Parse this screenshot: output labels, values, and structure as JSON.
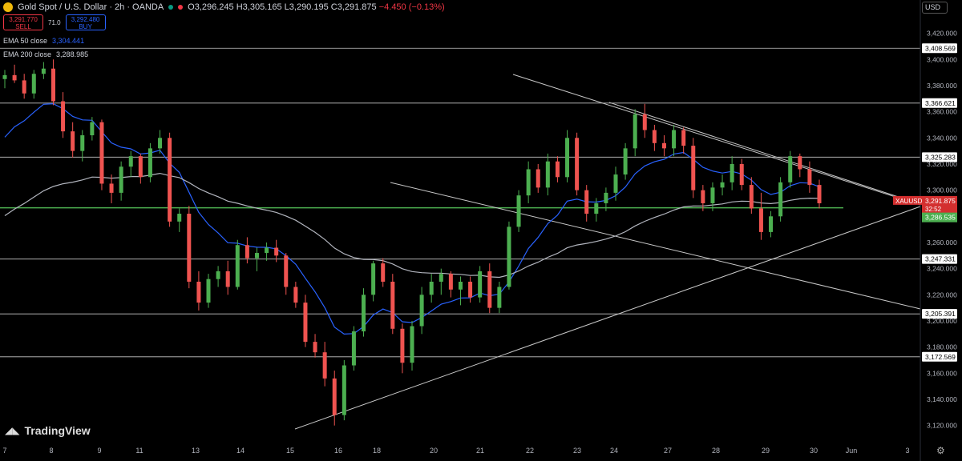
{
  "header": {
    "symbol": "Gold Spot / U.S. Dollar · 2h · OANDA",
    "ohlc": "O3,296.245 H3,305.165 L3,290.195 C3,291.875",
    "change": "−4.450 (−0.13%)",
    "status_colors": [
      "#089981",
      "#f23645"
    ]
  },
  "trade": {
    "sell_price": "3,291.770",
    "sell_label": "SELL",
    "spread": "71.0",
    "buy_price": "3,292.480",
    "buy_label": "BUY"
  },
  "indicators": {
    "ema50_label": "EMA 50 close",
    "ema50_value": "3,304.441",
    "ema50_color": "#2962ff",
    "ema200_label": "EMA 200 close",
    "ema200_value": "3,288.985",
    "ema200_color": "#b2b5be"
  },
  "currency": "USD",
  "branding": "TradingView",
  "chart_data": {
    "type": "candlestick",
    "symbol": "XAUUSD",
    "ylim": [
      3110,
      3432
    ],
    "y_ticks": [
      "3,420.000",
      "3,400.000",
      "3,380.000",
      "3,360.000",
      "3,340.000",
      "3,320.000",
      "3,300.000",
      "3,280.000",
      "3,260.000",
      "3,240.000",
      "3,220.000",
      "3,200.000",
      "3,180.000",
      "3,160.000",
      "3,140.000",
      "3,120.000"
    ],
    "x_ticks": [
      "7",
      "8",
      "9",
      "11",
      "13",
      "14",
      "15",
      "16",
      "18",
      "20",
      "21",
      "22",
      "23",
      "24",
      "27",
      "28",
      "29",
      "30",
      "Jun",
      "3"
    ],
    "horizontal_levels": [
      "3,408.569",
      "3,366.621",
      "3,325.283",
      "3,247.331",
      "3,205.391",
      "3,172.569"
    ],
    "support_level": "3,286.535",
    "last_price": "3,291.875",
    "countdown": "32:52",
    "candles": [
      [
        3385,
        3392,
        3378,
        3388
      ],
      [
        3388,
        3396,
        3382,
        3384
      ],
      [
        3384,
        3389,
        3370,
        3374
      ],
      [
        3374,
        3392,
        3370,
        3389
      ],
      [
        3389,
        3398,
        3385,
        3393
      ],
      [
        3393,
        3400,
        3365,
        3368
      ],
      [
        3368,
        3375,
        3340,
        3345
      ],
      [
        3345,
        3352,
        3325,
        3330
      ],
      [
        3330,
        3346,
        3322,
        3342
      ],
      [
        3342,
        3356,
        3338,
        3352
      ],
      [
        3352,
        3354,
        3300,
        3305
      ],
      [
        3305,
        3312,
        3290,
        3298
      ],
      [
        3298,
        3322,
        3292,
        3318
      ],
      [
        3318,
        3330,
        3310,
        3326
      ],
      [
        3326,
        3328,
        3305,
        3310
      ],
      [
        3310,
        3336,
        3306,
        3332
      ],
      [
        3332,
        3346,
        3328,
        3340
      ],
      [
        3340,
        3344,
        3272,
        3276
      ],
      [
        3276,
        3286,
        3268,
        3282
      ],
      [
        3282,
        3288,
        3225,
        3230
      ],
      [
        3230,
        3238,
        3208,
        3214
      ],
      [
        3214,
        3236,
        3210,
        3232
      ],
      [
        3232,
        3242,
        3226,
        3238
      ],
      [
        3238,
        3246,
        3220,
        3226
      ],
      [
        3226,
        3262,
        3224,
        3258
      ],
      [
        3258,
        3264,
        3244,
        3248
      ],
      [
        3248,
        3256,
        3238,
        3252
      ],
      [
        3252,
        3260,
        3246,
        3256
      ],
      [
        3256,
        3262,
        3245,
        3250
      ],
      [
        3250,
        3252,
        3220,
        3226
      ],
      [
        3226,
        3230,
        3210,
        3214
      ],
      [
        3214,
        3220,
        3180,
        3184
      ],
      [
        3184,
        3190,
        3172,
        3176
      ],
      [
        3176,
        3184,
        3150,
        3156
      ],
      [
        3156,
        3162,
        3120,
        3128
      ],
      [
        3128,
        3170,
        3124,
        3166
      ],
      [
        3166,
        3196,
        3162,
        3192
      ],
      [
        3192,
        3225,
        3188,
        3220
      ],
      [
        3220,
        3246,
        3215,
        3244
      ],
      [
        3244,
        3248,
        3226,
        3230
      ],
      [
        3230,
        3236,
        3190,
        3194
      ],
      [
        3194,
        3198,
        3160,
        3168
      ],
      [
        3168,
        3200,
        3162,
        3196
      ],
      [
        3196,
        3226,
        3190,
        3220
      ],
      [
        3220,
        3236,
        3214,
        3230
      ],
      [
        3230,
        3240,
        3220,
        3236
      ],
      [
        3236,
        3238,
        3218,
        3224
      ],
      [
        3224,
        3234,
        3212,
        3230
      ],
      [
        3230,
        3234,
        3214,
        3218
      ],
      [
        3218,
        3242,
        3214,
        3238
      ],
      [
        3238,
        3244,
        3206,
        3210
      ],
      [
        3210,
        3230,
        3206,
        3226
      ],
      [
        3226,
        3276,
        3224,
        3272
      ],
      [
        3272,
        3300,
        3268,
        3296
      ],
      [
        3296,
        3322,
        3290,
        3316
      ],
      [
        3316,
        3320,
        3298,
        3302
      ],
      [
        3302,
        3328,
        3296,
        3322
      ],
      [
        3322,
        3326,
        3306,
        3310
      ],
      [
        3310,
        3346,
        3306,
        3340
      ],
      [
        3340,
        3344,
        3296,
        3300
      ],
      [
        3300,
        3304,
        3276,
        3282
      ],
      [
        3282,
        3294,
        3276,
        3290
      ],
      [
        3290,
        3302,
        3284,
        3298
      ],
      [
        3298,
        3318,
        3292,
        3312
      ],
      [
        3312,
        3336,
        3308,
        3332
      ],
      [
        3332,
        3362,
        3326,
        3358
      ],
      [
        3358,
        3366,
        3340,
        3346
      ],
      [
        3346,
        3350,
        3330,
        3336
      ],
      [
        3336,
        3342,
        3326,
        3332
      ],
      [
        3332,
        3350,
        3326,
        3346
      ],
      [
        3346,
        3348,
        3328,
        3334
      ],
      [
        3334,
        3340,
        3294,
        3300
      ],
      [
        3300,
        3304,
        3284,
        3290
      ],
      [
        3290,
        3306,
        3284,
        3302
      ],
      [
        3302,
        3312,
        3296,
        3306
      ],
      [
        3306,
        3326,
        3300,
        3320
      ],
      [
        3320,
        3324,
        3300,
        3304
      ],
      [
        3304,
        3310,
        3282,
        3286
      ],
      [
        3286,
        3298,
        3262,
        3268
      ],
      [
        3268,
        3284,
        3264,
        3280
      ],
      [
        3280,
        3310,
        3276,
        3306
      ],
      [
        3306,
        3330,
        3302,
        3326
      ],
      [
        3326,
        3328,
        3310,
        3316
      ],
      [
        3316,
        3322,
        3298,
        3304
      ],
      [
        3304,
        3308,
        3286,
        3290
      ]
    ]
  }
}
